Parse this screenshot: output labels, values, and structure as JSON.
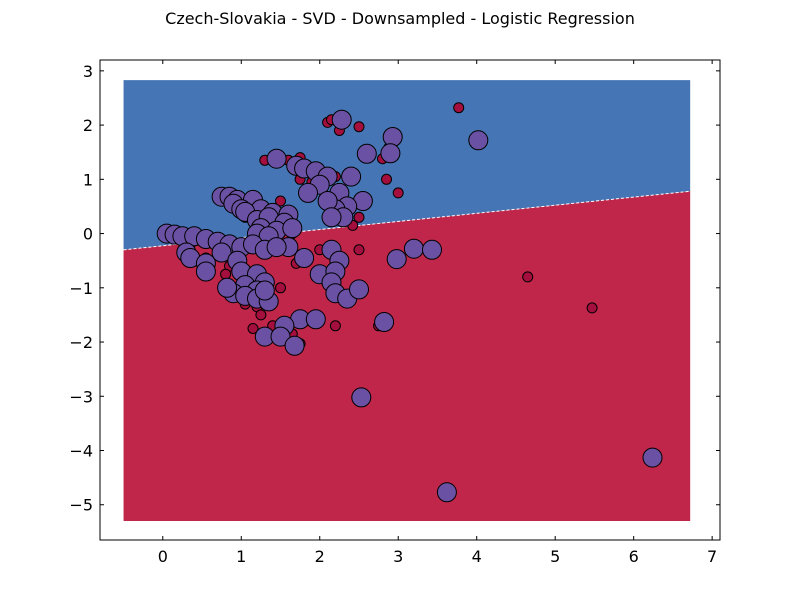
{
  "chart_data": {
    "type": "scatter",
    "title": "Czech-Slovakia - SVD - Downsampled - Logistic Regression",
    "xlabel": "",
    "ylabel": "",
    "xlim": [
      -0.8,
      7.1
    ],
    "ylim": [
      -5.65,
      3.2
    ],
    "grid": false,
    "x_ticks": [
      0,
      1,
      2,
      3,
      4,
      5,
      6,
      7
    ],
    "y_ticks": [
      3,
      2,
      1,
      0,
      -1,
      -2,
      -3,
      -4,
      -5
    ],
    "x_tick_labels": [
      "0",
      "1",
      "2",
      "3",
      "4",
      "5",
      "6",
      "7"
    ],
    "y_tick_labels": [
      "3",
      "2",
      "1",
      "0",
      "−1",
      "−2",
      "−3",
      "−4",
      "−5"
    ],
    "decision_region": {
      "x_range": [
        -0.5,
        6.72
      ],
      "y_range": [
        -5.3,
        2.83
      ],
      "boundary": [
        [
          -0.5,
          -0.3
        ],
        [
          6.72,
          0.78
        ]
      ],
      "upper_color": "#4575b4",
      "lower_color": "#c0264a"
    },
    "series": [
      {
        "marker_color": "#a50f3e",
        "marker_size": "small",
        "points": [
          [
            3.77,
            2.32
          ],
          [
            2.1,
            2.05
          ],
          [
            2.15,
            2.1
          ],
          [
            2.25,
            1.9
          ],
          [
            2.5,
            1.97
          ],
          [
            2.88,
            1.58
          ],
          [
            2.8,
            1.38
          ],
          [
            2.85,
            1.0
          ],
          [
            3.0,
            0.75
          ],
          [
            1.5,
            1.4
          ],
          [
            1.6,
            1.35
          ],
          [
            1.3,
            1.35
          ],
          [
            1.75,
            1.4
          ],
          [
            1.85,
            1.2
          ],
          [
            1.75,
            1.0
          ],
          [
            1.9,
            0.95
          ],
          [
            1.5,
            0.6
          ],
          [
            1.05,
            0.3
          ],
          [
            1.5,
            0.25
          ],
          [
            1.65,
            0.0
          ],
          [
            2.42,
            0.15
          ],
          [
            2.5,
            0.3
          ],
          [
            1.3,
            0.05
          ],
          [
            0.3,
            -0.1
          ],
          [
            0.2,
            -0.05
          ],
          [
            0.35,
            -0.2
          ],
          [
            0.55,
            -0.45
          ],
          [
            0.85,
            -0.6
          ],
          [
            1.05,
            -0.75
          ],
          [
            1.35,
            -0.9
          ],
          [
            1.5,
            -1.0
          ],
          [
            1.7,
            -0.55
          ],
          [
            2.0,
            -0.3
          ],
          [
            2.5,
            -0.3
          ],
          [
            1.15,
            -0.15
          ],
          [
            1.05,
            -1.3
          ],
          [
            1.2,
            -1.35
          ],
          [
            1.25,
            -1.5
          ],
          [
            1.15,
            -1.75
          ],
          [
            1.4,
            -1.7
          ],
          [
            1.65,
            -1.85
          ],
          [
            1.75,
            -2.03
          ],
          [
            2.2,
            -1.7
          ],
          [
            2.75,
            -1.7
          ],
          [
            4.65,
            -0.8
          ],
          [
            5.47,
            -1.37
          ],
          [
            0.8,
            -0.75
          ],
          [
            1.0,
            -1.1
          ],
          [
            0.15,
            0.05
          ],
          [
            2.2,
            1.05
          ]
        ]
      },
      {
        "marker_color": "#6a51a3",
        "marker_size": "large",
        "points": [
          [
            2.28,
            2.1
          ],
          [
            4.02,
            1.72
          ],
          [
            2.93,
            1.78
          ],
          [
            2.6,
            1.47
          ],
          [
            2.9,
            1.48
          ],
          [
            1.45,
            1.38
          ],
          [
            1.7,
            1.25
          ],
          [
            1.8,
            1.2
          ],
          [
            1.95,
            1.15
          ],
          [
            2.1,
            1.05
          ],
          [
            2.0,
            0.9
          ],
          [
            2.4,
            1.05
          ],
          [
            2.25,
            0.75
          ],
          [
            1.85,
            0.75
          ],
          [
            2.55,
            0.6
          ],
          [
            2.35,
            0.5
          ],
          [
            2.2,
            0.45
          ],
          [
            2.1,
            0.6
          ],
          [
            2.3,
            0.3
          ],
          [
            2.15,
            0.3
          ],
          [
            0.75,
            0.68
          ],
          [
            0.85,
            0.68
          ],
          [
            0.95,
            0.62
          ],
          [
            1.15,
            0.62
          ],
          [
            0.9,
            0.55
          ],
          [
            1.0,
            0.45
          ],
          [
            1.25,
            0.45
          ],
          [
            1.05,
            0.4
          ],
          [
            1.4,
            0.38
          ],
          [
            1.6,
            0.35
          ],
          [
            1.2,
            0.25
          ],
          [
            1.35,
            0.3
          ],
          [
            1.55,
            0.2
          ],
          [
            1.25,
            0.1
          ],
          [
            1.45,
            0.05
          ],
          [
            1.65,
            0.1
          ],
          [
            1.2,
            0.0
          ],
          [
            1.35,
            -0.05
          ],
          [
            0.05,
            0.0
          ],
          [
            0.15,
            -0.02
          ],
          [
            0.25,
            -0.05
          ],
          [
            0.4,
            -0.05
          ],
          [
            0.55,
            -0.1
          ],
          [
            0.7,
            -0.15
          ],
          [
            0.85,
            -0.2
          ],
          [
            1.0,
            -0.25
          ],
          [
            1.15,
            -0.2
          ],
          [
            1.3,
            -0.3
          ],
          [
            1.6,
            -0.25
          ],
          [
            1.45,
            -0.25
          ],
          [
            2.15,
            -0.3
          ],
          [
            2.25,
            -0.5
          ],
          [
            3.2,
            -0.28
          ],
          [
            3.43,
            -0.3
          ],
          [
            2.98,
            -0.47
          ],
          [
            0.3,
            -0.35
          ],
          [
            0.35,
            -0.45
          ],
          [
            0.55,
            -0.55
          ],
          [
            0.75,
            -0.35
          ],
          [
            0.95,
            -0.5
          ],
          [
            0.55,
            -0.7
          ],
          [
            1.0,
            -0.7
          ],
          [
            1.2,
            -0.75
          ],
          [
            1.3,
            -0.9
          ],
          [
            1.8,
            -0.45
          ],
          [
            2.0,
            -0.75
          ],
          [
            2.2,
            -0.7
          ],
          [
            2.15,
            -0.9
          ],
          [
            2.2,
            -1.1
          ],
          [
            2.35,
            -1.2
          ],
          [
            2.5,
            -1.03
          ],
          [
            1.05,
            -0.95
          ],
          [
            1.2,
            -1.05
          ],
          [
            0.9,
            -1.1
          ],
          [
            1.05,
            -1.15
          ],
          [
            1.2,
            -1.2
          ],
          [
            1.35,
            -1.25
          ],
          [
            1.3,
            -1.05
          ],
          [
            0.82,
            -1.0
          ],
          [
            1.75,
            -1.58
          ],
          [
            1.95,
            -1.58
          ],
          [
            1.55,
            -1.7
          ],
          [
            1.3,
            -1.9
          ],
          [
            1.5,
            -1.9
          ],
          [
            1.68,
            -2.07
          ],
          [
            2.82,
            -1.63
          ],
          [
            2.53,
            -3.02
          ],
          [
            3.62,
            -4.77
          ],
          [
            6.24,
            -4.13
          ]
        ]
      }
    ]
  }
}
